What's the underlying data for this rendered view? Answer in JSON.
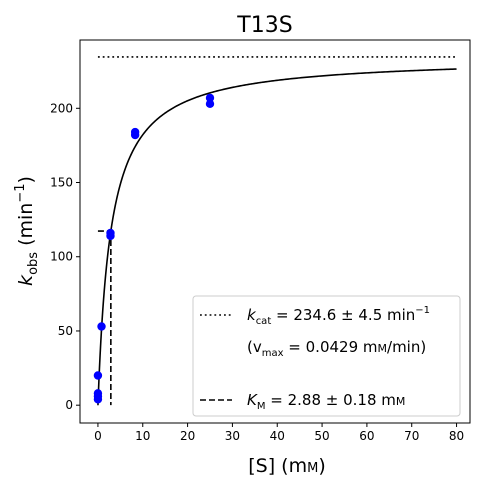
{
  "chart_data": {
    "type": "scatter",
    "title": "T13S",
    "xlabel": {
      "main": "[S] (m",
      "small": "M",
      "close": ")"
    },
    "ylabel": {
      "main": "k",
      "sub": "obs",
      "unit": " (min",
      "sup": "−1",
      "close": ")"
    },
    "xlim": [
      -4,
      83
    ],
    "ylim": [
      -12,
      246
    ],
    "xticks": [
      0,
      10,
      20,
      30,
      40,
      50,
      60,
      70,
      80
    ],
    "yticks": [
      0,
      50,
      100,
      150,
      200
    ],
    "grid": false,
    "legend_placement": "lower-right",
    "points": {
      "color": "#0000ff",
      "x": [
        0,
        0,
        0,
        0,
        0.8,
        2.8,
        2.8,
        8.3,
        8.3,
        25,
        25
      ],
      "y": [
        4,
        6,
        8,
        20,
        53,
        114,
        116,
        182,
        184,
        203,
        207
      ]
    },
    "fit": {
      "model": "michaelis-menten",
      "kcat": 234.6,
      "KM": 2.88,
      "x_range": [
        0,
        80
      ],
      "color": "#000000"
    },
    "kcat_line": {
      "y": 234.6,
      "x_range": [
        0,
        80
      ],
      "style": "dotted"
    },
    "KM_marker": {
      "x": 2.88,
      "y": 117.3,
      "x_start": 0,
      "style": "dashed"
    },
    "legend": [
      {
        "style": "dotted",
        "sym": "k",
        "sub": "cat",
        "text": " = 234.6 ± 4.5 min",
        "sup": "−1"
      },
      {
        "style": "none",
        "text": "(v",
        "sub": "max",
        "text2": " = 0.0429 m",
        "small": "M",
        "text3": "/min)"
      },
      {
        "style": "dashed",
        "sym": "K",
        "sub": "M",
        "text": " = 2.88 ± 0.18 m",
        "small": "M"
      }
    ]
  }
}
